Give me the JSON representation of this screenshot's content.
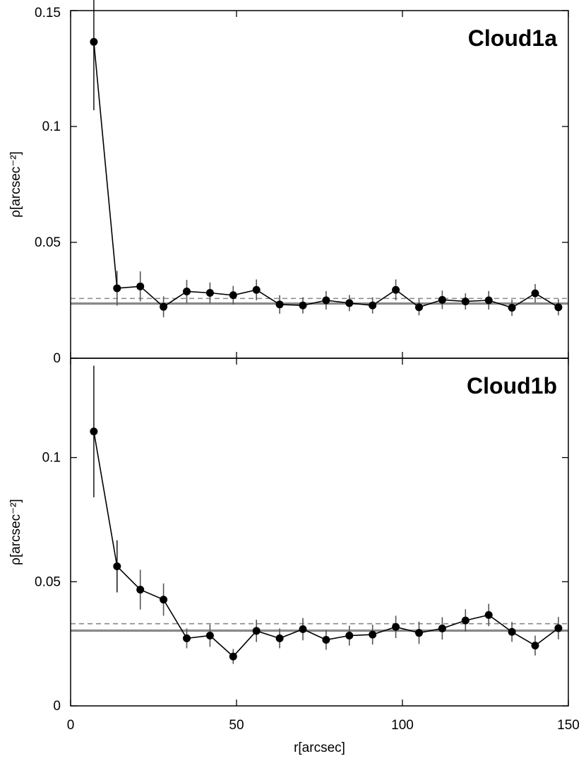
{
  "chart_data": [
    {
      "type": "scatter",
      "title": "Cloud1a",
      "xlabel": "",
      "ylabel": "ρ[arcsec⁻²]",
      "xlim": [
        0,
        150
      ],
      "ylim": [
        0,
        0.15
      ],
      "yticks": [
        0,
        0.05,
        0.1,
        0.15
      ],
      "ytick_labels": [
        "0",
        "0.05",
        "0.1",
        "0.15"
      ],
      "xticks": [
        0,
        50,
        100,
        150
      ],
      "xtick_labels": [],
      "show_line": true,
      "points": [
        {
          "x": 7,
          "y": 0.1365,
          "err": 0.0295
        },
        {
          "x": 14,
          "y": 0.0302,
          "err": 0.0075
        },
        {
          "x": 21,
          "y": 0.031,
          "err": 0.0065
        },
        {
          "x": 28,
          "y": 0.0222,
          "err": 0.0045
        },
        {
          "x": 35,
          "y": 0.0288,
          "err": 0.005
        },
        {
          "x": 42,
          "y": 0.0282,
          "err": 0.0045
        },
        {
          "x": 49,
          "y": 0.0272,
          "err": 0.004
        },
        {
          "x": 56,
          "y": 0.0295,
          "err": 0.0045
        },
        {
          "x": 63,
          "y": 0.0232,
          "err": 0.004
        },
        {
          "x": 70,
          "y": 0.0228,
          "err": 0.0035
        },
        {
          "x": 77,
          "y": 0.025,
          "err": 0.004
        },
        {
          "x": 84,
          "y": 0.0238,
          "err": 0.0035
        },
        {
          "x": 91,
          "y": 0.0228,
          "err": 0.0035
        },
        {
          "x": 98,
          "y": 0.0295,
          "err": 0.0045
        },
        {
          "x": 105,
          "y": 0.022,
          "err": 0.0035
        },
        {
          "x": 112,
          "y": 0.0252,
          "err": 0.004
        },
        {
          "x": 119,
          "y": 0.0245,
          "err": 0.0035
        },
        {
          "x": 126,
          "y": 0.025,
          "err": 0.004
        },
        {
          "x": 133,
          "y": 0.0218,
          "err": 0.0035
        },
        {
          "x": 140,
          "y": 0.028,
          "err": 0.004
        },
        {
          "x": 147,
          "y": 0.022,
          "err": 0.0035
        }
      ],
      "reference_lines": [
        {
          "y": 0.0236,
          "style": "solid",
          "color": "#888888"
        },
        {
          "y": 0.0258,
          "style": "dashed",
          "color": "#888888"
        }
      ]
    },
    {
      "type": "scatter",
      "title": "Cloud1b",
      "xlabel": "r[arcsec]",
      "ylabel": "ρ[arcsec⁻²]",
      "xlim": [
        0,
        150
      ],
      "ylim": [
        0,
        0.14
      ],
      "yticks": [
        0,
        0.05,
        0.1
      ],
      "ytick_labels": [
        "0",
        "0.05",
        "0.1"
      ],
      "xticks": [
        0,
        50,
        100,
        150
      ],
      "xtick_labels": [
        "0",
        "50",
        "100",
        "150"
      ],
      "show_line": true,
      "points": [
        {
          "x": 7,
          "y": 0.1105,
          "err": 0.0265
        },
        {
          "x": 14,
          "y": 0.0562,
          "err": 0.0105
        },
        {
          "x": 21,
          "y": 0.0468,
          "err": 0.008
        },
        {
          "x": 28,
          "y": 0.0428,
          "err": 0.0065
        },
        {
          "x": 35,
          "y": 0.0272,
          "err": 0.004
        },
        {
          "x": 42,
          "y": 0.0283,
          "err": 0.0045
        },
        {
          "x": 49,
          "y": 0.0199,
          "err": 0.003
        },
        {
          "x": 56,
          "y": 0.0302,
          "err": 0.0045
        },
        {
          "x": 63,
          "y": 0.0272,
          "err": 0.004
        },
        {
          "x": 70,
          "y": 0.0309,
          "err": 0.0045
        },
        {
          "x": 77,
          "y": 0.0266,
          "err": 0.004
        },
        {
          "x": 84,
          "y": 0.0283,
          "err": 0.004
        },
        {
          "x": 91,
          "y": 0.0287,
          "err": 0.004
        },
        {
          "x": 98,
          "y": 0.0318,
          "err": 0.0045
        },
        {
          "x": 105,
          "y": 0.0294,
          "err": 0.0045
        },
        {
          "x": 112,
          "y": 0.0312,
          "err": 0.0045
        },
        {
          "x": 119,
          "y": 0.0344,
          "err": 0.0045
        },
        {
          "x": 126,
          "y": 0.0366,
          "err": 0.0045
        },
        {
          "x": 133,
          "y": 0.0298,
          "err": 0.004
        },
        {
          "x": 140,
          "y": 0.0243,
          "err": 0.004
        },
        {
          "x": 147,
          "y": 0.0313,
          "err": 0.0045
        }
      ],
      "reference_lines": [
        {
          "y": 0.0303,
          "style": "solid",
          "color": "#888888"
        },
        {
          "y": 0.0331,
          "style": "dashed",
          "color": "#888888"
        }
      ]
    }
  ]
}
